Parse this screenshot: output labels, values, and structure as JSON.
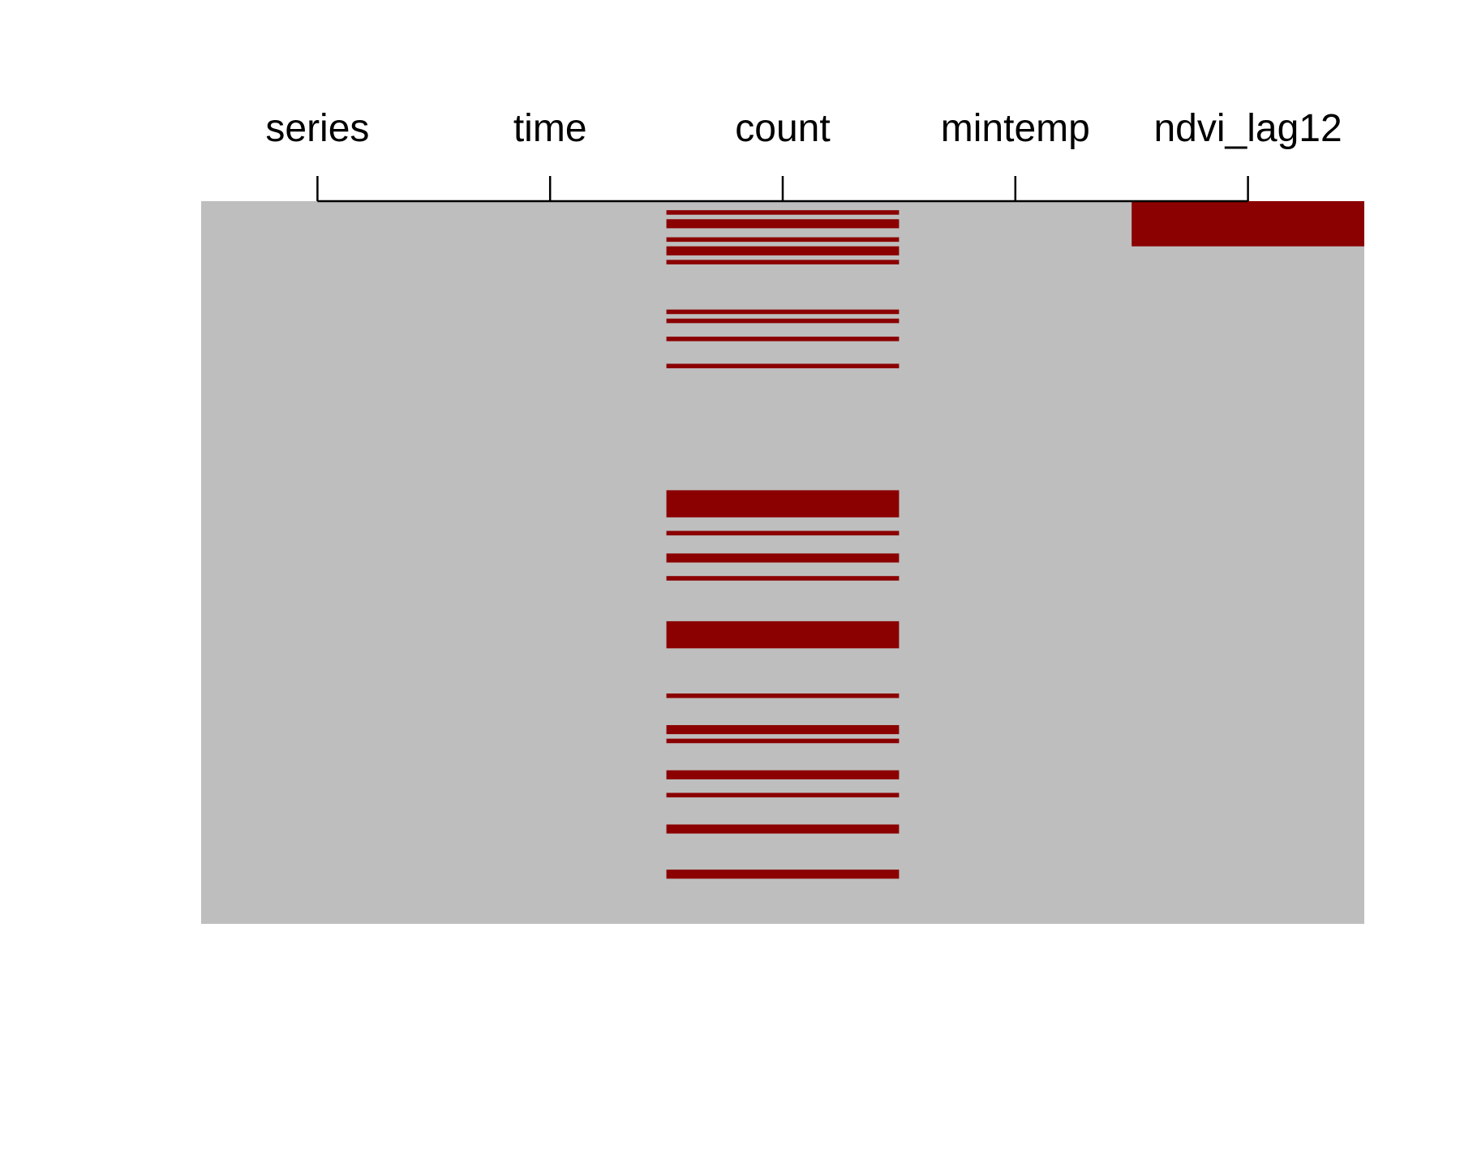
{
  "chart_data": {
    "type": "heatmap",
    "title": "",
    "variables": [
      "series",
      "time",
      "count",
      "mintemp",
      "ndvi_lag12"
    ],
    "n_rows": 160,
    "colors": {
      "observed": "#bebebe",
      "missing": "#8b0000"
    },
    "axis_position": "top",
    "grid": false,
    "legend": "none",
    "missing_rows": {
      "series": [],
      "time": [],
      "count": [
        2,
        4,
        5,
        8,
        10,
        11,
        13,
        24,
        26,
        30,
        36,
        64,
        65,
        66,
        67,
        68,
        69,
        73,
        78,
        79,
        83,
        93,
        94,
        95,
        96,
        97,
        98,
        109,
        116,
        117,
        119,
        126,
        127,
        131,
        138,
        139,
        148,
        149
      ],
      "mintemp": [],
      "ndvi_lag12": [
        0,
        1,
        2,
        3,
        4,
        5,
        6,
        7,
        8,
        9
      ]
    }
  }
}
